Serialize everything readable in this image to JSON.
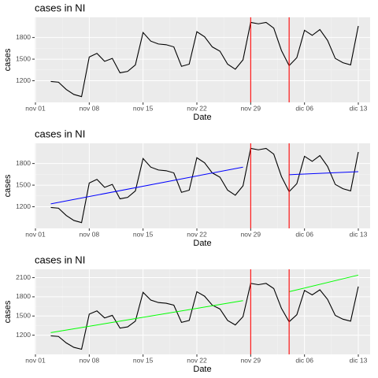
{
  "chart_data": [
    {
      "type": "line",
      "title": "cases in NI",
      "x_label": "Date",
      "y_label": "cases",
      "x": [
        "nov 03",
        "nov 04",
        "nov 05",
        "nov 06",
        "nov 07",
        "nov 08",
        "nov 09",
        "nov 10",
        "nov 11",
        "nov 12",
        "nov 13",
        "nov 14",
        "nov 15",
        "nov 16",
        "nov 17",
        "nov 18",
        "nov 19",
        "nov 20",
        "nov 21",
        "nov 22",
        "nov 23",
        "nov 24",
        "nov 25",
        "nov 26",
        "nov 27",
        "nov 28",
        "nov 29",
        "nov 30",
        "dic 01",
        "dic 02",
        "dic 03",
        "dic 04",
        "dic 05",
        "dic 06",
        "dic 07",
        "dic 08",
        "dic 09",
        "dic 10",
        "dic 11",
        "dic 12",
        "dic 13"
      ],
      "values": [
        1190,
        1180,
        1080,
        1010,
        980,
        1530,
        1580,
        1470,
        1510,
        1310,
        1330,
        1420,
        1870,
        1750,
        1710,
        1700,
        1670,
        1400,
        1430,
        1880,
        1810,
        1670,
        1610,
        1430,
        1360,
        1490,
        2010,
        1990,
        2010,
        1930,
        1620,
        1410,
        1520,
        1900,
        1830,
        1910,
        1760,
        1510,
        1450,
        1420,
        1960
      ],
      "color": "#000000",
      "xlim": [
        "nov 01",
        "dic 13"
      ],
      "xticks": [
        "nov 01",
        "nov 08",
        "nov 15",
        "nov 22",
        "nov 29",
        "dic 06",
        "dic 13"
      ],
      "ylim": [
        900,
        2080
      ],
      "yticks": [
        1200,
        1500,
        1800
      ],
      "vlines": [
        "nov 29",
        "dic 04"
      ],
      "vline_color": "#ff0000",
      "grid": true
    },
    {
      "type": "line",
      "title": "cases in NI",
      "x_label": "Date",
      "y_label": "cases",
      "x": [
        "nov 03",
        "nov 04",
        "nov 05",
        "nov 06",
        "nov 07",
        "nov 08",
        "nov 09",
        "nov 10",
        "nov 11",
        "nov 12",
        "nov 13",
        "nov 14",
        "nov 15",
        "nov 16",
        "nov 17",
        "nov 18",
        "nov 19",
        "nov 20",
        "nov 21",
        "nov 22",
        "nov 23",
        "nov 24",
        "nov 25",
        "nov 26",
        "nov 27",
        "nov 28",
        "nov 29",
        "nov 30",
        "dic 01",
        "dic 02",
        "dic 03",
        "dic 04",
        "dic 05",
        "dic 06",
        "dic 07",
        "dic 08",
        "dic 09",
        "dic 10",
        "dic 11",
        "dic 12",
        "dic 13"
      ],
      "values": [
        1190,
        1180,
        1080,
        1010,
        980,
        1530,
        1580,
        1470,
        1510,
        1310,
        1330,
        1420,
        1870,
        1750,
        1710,
        1700,
        1670,
        1400,
        1430,
        1880,
        1810,
        1670,
        1610,
        1430,
        1360,
        1490,
        2010,
        1990,
        2010,
        1930,
        1620,
        1410,
        1520,
        1900,
        1830,
        1910,
        1760,
        1510,
        1450,
        1420,
        1960
      ],
      "color": "#000000",
      "xlim": [
        "nov 01",
        "dic 13"
      ],
      "xticks": [
        "nov 01",
        "nov 08",
        "nov 15",
        "nov 22",
        "nov 29",
        "dic 06",
        "dic 13"
      ],
      "ylim": [
        900,
        2080
      ],
      "yticks": [
        1200,
        1500,
        1800
      ],
      "vlines": [
        "nov 29",
        "dic 04"
      ],
      "vline_color": "#ff0000",
      "grid": true,
      "trend_lines": [
        {
          "x": [
            "nov 03",
            "nov 28"
          ],
          "values": [
            1240,
            1750
          ],
          "color": "#0000ff"
        },
        {
          "x": [
            "dic 04",
            "dic 13"
          ],
          "values": [
            1645,
            1686
          ],
          "color": "#0000ff"
        }
      ]
    },
    {
      "type": "line",
      "title": "cases in NI",
      "x_label": "Date",
      "y_label": "cases",
      "x": [
        "nov 03",
        "nov 04",
        "nov 05",
        "nov 06",
        "nov 07",
        "nov 08",
        "nov 09",
        "nov 10",
        "nov 11",
        "nov 12",
        "nov 13",
        "nov 14",
        "nov 15",
        "nov 16",
        "nov 17",
        "nov 18",
        "nov 19",
        "nov 20",
        "nov 21",
        "nov 22",
        "nov 23",
        "nov 24",
        "nov 25",
        "nov 26",
        "nov 27",
        "nov 28",
        "nov 29",
        "nov 30",
        "dic 01",
        "dic 02",
        "dic 03",
        "dic 04",
        "dic 05",
        "dic 06",
        "dic 07",
        "dic 08",
        "dic 09",
        "dic 10",
        "dic 11",
        "dic 12",
        "dic 13"
      ],
      "values": [
        1190,
        1180,
        1080,
        1010,
        980,
        1530,
        1580,
        1470,
        1510,
        1310,
        1330,
        1420,
        1870,
        1750,
        1710,
        1700,
        1670,
        1400,
        1430,
        1880,
        1810,
        1670,
        1610,
        1430,
        1360,
        1490,
        2010,
        1990,
        2010,
        1930,
        1620,
        1410,
        1520,
        1900,
        1830,
        1910,
        1760,
        1510,
        1450,
        1420,
        1960
      ],
      "color": "#000000",
      "xlim": [
        "nov 01",
        "dic 13"
      ],
      "xticks": [
        "nov 01",
        "nov 08",
        "nov 15",
        "nov 22",
        "nov 29",
        "dic 06",
        "dic 13"
      ],
      "ylim": [
        900,
        2230
      ],
      "yticks": [
        1200,
        1500,
        1800,
        2100
      ],
      "vlines": [
        "nov 29",
        "dic 04"
      ],
      "vline_color": "#ff0000",
      "grid": true,
      "trend_lines": [
        {
          "x": [
            "nov 03",
            "nov 28"
          ],
          "values": [
            1240,
            1740
          ],
          "color": "#00ff00"
        },
        {
          "x": [
            "dic 04",
            "dic 13"
          ],
          "values": [
            1880,
            2140
          ],
          "color": "#00ff00"
        }
      ]
    }
  ]
}
